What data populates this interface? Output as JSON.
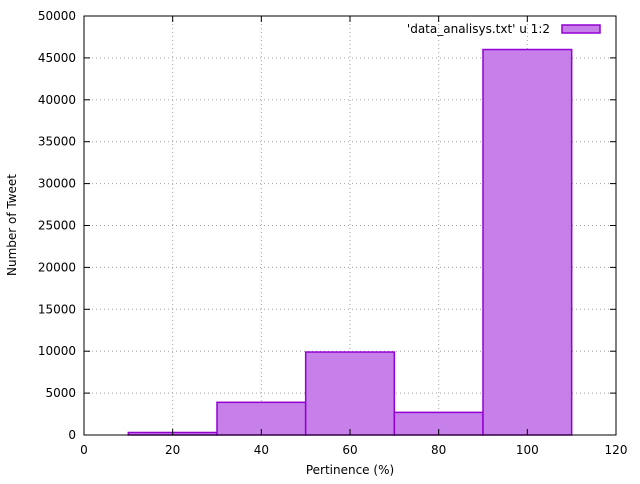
{
  "chart_data": {
    "type": "bar",
    "style": "histogram-boxes",
    "xlabel": "Pertinence (%)",
    "ylabel": "Number of Tweet",
    "xlim": [
      0,
      120
    ],
    "ylim": [
      0,
      50000
    ],
    "xticks": [
      0,
      20,
      40,
      60,
      80,
      100,
      120
    ],
    "yticks": [
      0,
      5000,
      10000,
      15000,
      20000,
      25000,
      30000,
      35000,
      40000,
      45000,
      50000
    ],
    "grid": true,
    "legend_position": "top-right",
    "series": [
      {
        "name": "'data_analisys.txt' u 1:2",
        "color": "#9400d3",
        "fill_color": "#c77fe9",
        "bins": [
          {
            "x_start": 10,
            "x_end": 30,
            "value": 300
          },
          {
            "x_start": 30,
            "x_end": 50,
            "value": 3900
          },
          {
            "x_start": 50,
            "x_end": 70,
            "value": 9900
          },
          {
            "x_start": 70,
            "x_end": 90,
            "value": 2700
          },
          {
            "x_start": 90,
            "x_end": 110,
            "value": 46000
          }
        ]
      }
    ]
  }
}
